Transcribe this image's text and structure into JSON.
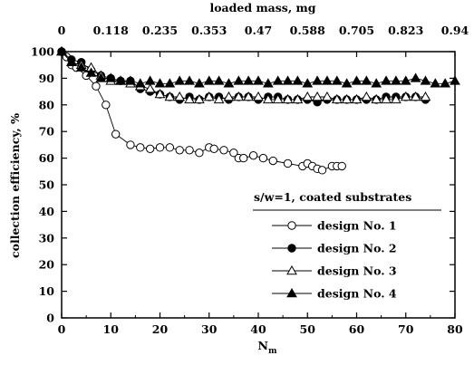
{
  "chart_data": {
    "type": "line",
    "title": "",
    "xlabel": "N",
    "xlabel_subscript": "m",
    "ylabel": "collection efficiency, %",
    "x2label": "loaded mass, mg",
    "xlim": [
      0,
      80
    ],
    "ylim": [
      0,
      100
    ],
    "x_ticks": [
      "0",
      "10",
      "20",
      "30",
      "40",
      "50",
      "60",
      "70",
      "80"
    ],
    "y_ticks": [
      "0",
      "10",
      "20",
      "30",
      "40",
      "50",
      "60",
      "70",
      "80",
      "90",
      "100"
    ],
    "x2_ticks": [
      "0",
      "0.118",
      "0.235",
      "0.353",
      "0.47",
      "0.588",
      "0.705",
      "0.823",
      "0.94"
    ],
    "grid": false,
    "legend": {
      "title": "s/w=1, coated substrates",
      "placement": "center-right"
    },
    "series": [
      {
        "name": "design No. 1",
        "marker": "open-circle",
        "x": [
          0,
          1,
          2,
          3,
          5,
          7,
          9,
          11,
          14,
          16,
          18,
          20,
          22,
          24,
          26,
          28,
          30,
          31,
          33,
          35,
          36,
          37,
          39,
          41,
          43,
          46,
          49,
          50,
          51,
          52,
          53,
          55,
          56,
          57
        ],
        "y": [
          100,
          98,
          95,
          94,
          91,
          87,
          80,
          69,
          65,
          64,
          63.5,
          64,
          64,
          63,
          63,
          62,
          64,
          63.5,
          63,
          62,
          60,
          60,
          61,
          60,
          59,
          58,
          57,
          58,
          57,
          56,
          55.5,
          57,
          57,
          57
        ]
      },
      {
        "name": "design No. 2",
        "marker": "filled-circle",
        "x": [
          0,
          2,
          4,
          6,
          8,
          10,
          12,
          14,
          16,
          18,
          20,
          22,
          24,
          26,
          28,
          30,
          32,
          34,
          36,
          38,
          40,
          42,
          44,
          46,
          48,
          50,
          52,
          54,
          56,
          58,
          60,
          62,
          64,
          66,
          68,
          70,
          72,
          74
        ],
        "y": [
          100,
          97,
          96,
          93,
          91,
          90,
          89,
          89,
          86,
          85,
          84,
          83,
          82,
          83,
          82,
          83,
          83,
          82,
          83,
          83,
          82,
          83,
          83,
          82,
          82,
          82,
          81,
          82,
          82,
          82,
          82,
          82,
          82,
          83,
          83,
          83,
          83,
          82
        ]
      },
      {
        "name": "design No. 3",
        "marker": "open-triangle",
        "x": [
          0,
          2,
          4,
          6,
          8,
          10,
          12,
          14,
          16,
          18,
          20,
          22,
          24,
          26,
          28,
          30,
          32,
          34,
          36,
          38,
          40,
          42,
          44,
          46,
          48,
          50,
          52,
          54,
          56,
          58,
          60,
          62,
          64,
          66,
          68,
          70,
          72,
          74
        ],
        "y": [
          100,
          96,
          95,
          94,
          91,
          89,
          89,
          88,
          87,
          86,
          84,
          83,
          83,
          82,
          82,
          83,
          82,
          83,
          83,
          83,
          83,
          82,
          82,
          82,
          82,
          83,
          83,
          83,
          82,
          82,
          82,
          83,
          82,
          82,
          82,
          83,
          83,
          83
        ]
      },
      {
        "name": "design No. 4",
        "marker": "filled-triangle",
        "x": [
          0,
          2,
          4,
          6,
          8,
          10,
          12,
          14,
          16,
          18,
          20,
          22,
          24,
          26,
          28,
          30,
          32,
          34,
          36,
          38,
          40,
          42,
          44,
          46,
          48,
          50,
          52,
          54,
          56,
          58,
          60,
          62,
          64,
          66,
          68,
          70,
          72,
          74,
          76,
          78,
          80
        ],
        "y": [
          100,
          96,
          94,
          92,
          90,
          90,
          89,
          89,
          88,
          89,
          88,
          88,
          89,
          89,
          88,
          89,
          89,
          88,
          89,
          89,
          89,
          88,
          89,
          89,
          89,
          88,
          89,
          89,
          89,
          88,
          89,
          89,
          88,
          89,
          89,
          89,
          90,
          89,
          88,
          88,
          89
        ]
      }
    ]
  }
}
